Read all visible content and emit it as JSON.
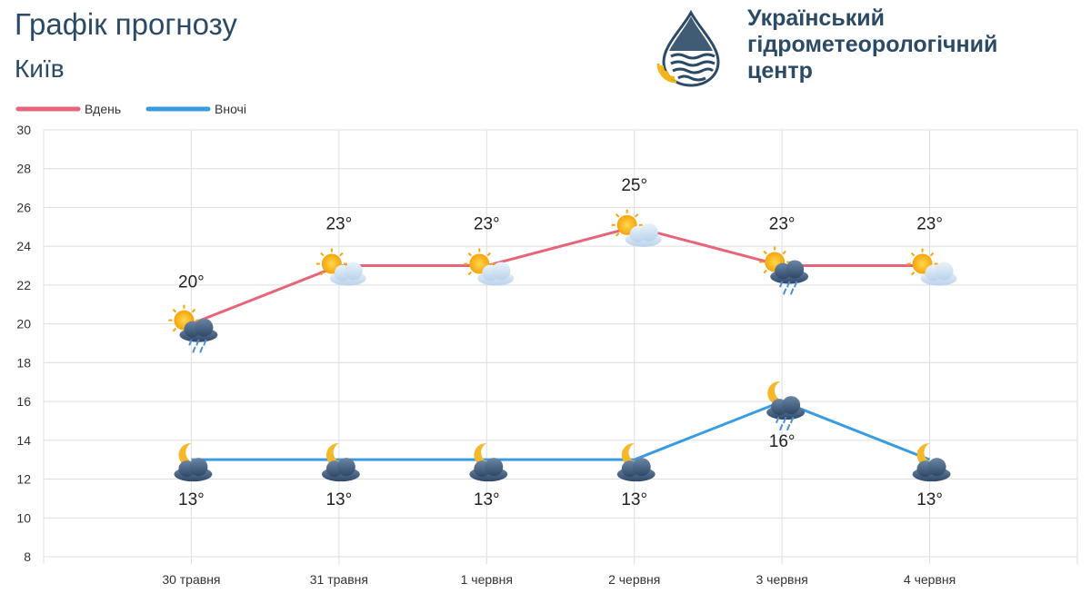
{
  "header": {
    "title": "Графік прогнозу",
    "city": "Київ"
  },
  "org": {
    "line1": "Український",
    "line2": "гідрометеорологічний",
    "line3": "центр"
  },
  "colors": {
    "day": "#e8647b",
    "night": "#3a9ce0",
    "title_text": "#2b4a66",
    "grid": "#dedede"
  },
  "chart_data": {
    "type": "line",
    "categories": [
      "30 травня",
      "31 травня",
      "1 червня",
      "2 червня",
      "3 червня",
      "4 червня"
    ],
    "series": [
      {
        "name": "Вдень",
        "values": [
          20,
          23,
          23,
          25,
          23,
          23
        ],
        "labels": [
          "20°",
          "23°",
          "23°",
          "25°",
          "23°",
          "23°"
        ],
        "icons": [
          "sun-cloud-rain-icon",
          "sun-cloud-icon",
          "sun-cloud-icon",
          "sun-cloud-icon",
          "sun-cloud-rain-icon",
          "sun-cloud-icon"
        ]
      },
      {
        "name": "Вночі",
        "values": [
          13,
          13,
          13,
          13,
          16,
          13
        ],
        "labels": [
          "13°",
          "13°",
          "13°",
          "13°",
          "16°",
          "13°"
        ],
        "icons": [
          "moon-cloud-icon",
          "moon-cloud-icon",
          "moon-cloud-icon",
          "moon-cloud-icon",
          "moon-cloud-rain-icon",
          "moon-cloud-icon"
        ]
      }
    ],
    "ylim": [
      8,
      30
    ],
    "yticks": [
      8,
      10,
      12,
      14,
      16,
      18,
      20,
      22,
      24,
      26,
      28,
      30
    ],
    "grid": true,
    "legend": "top-left"
  }
}
